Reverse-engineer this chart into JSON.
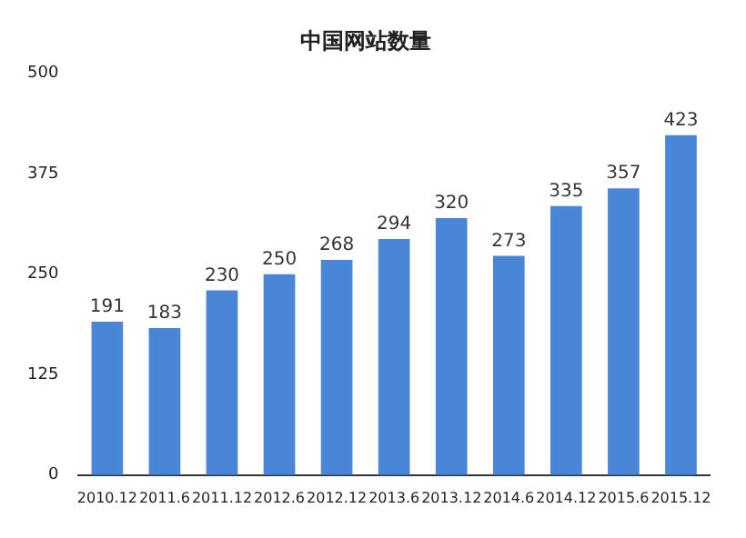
{
  "chart_data": {
    "type": "bar",
    "title": "中国网站数量",
    "categories": [
      "2010.12",
      "2011.6",
      "2011.12",
      "2012.6",
      "2012.12",
      "2013.6",
      "2013.12",
      "2014.6",
      "2014.12",
      "2015.6",
      "2015.12"
    ],
    "values": [
      191,
      183,
      230,
      250,
      268,
      294,
      320,
      273,
      335,
      357,
      423
    ],
    "color": "#4a86d8",
    "ylim": [
      0,
      500
    ],
    "yticks": [
      0,
      125,
      250,
      375,
      500
    ],
    "grid": false,
    "data_labels": true
  }
}
